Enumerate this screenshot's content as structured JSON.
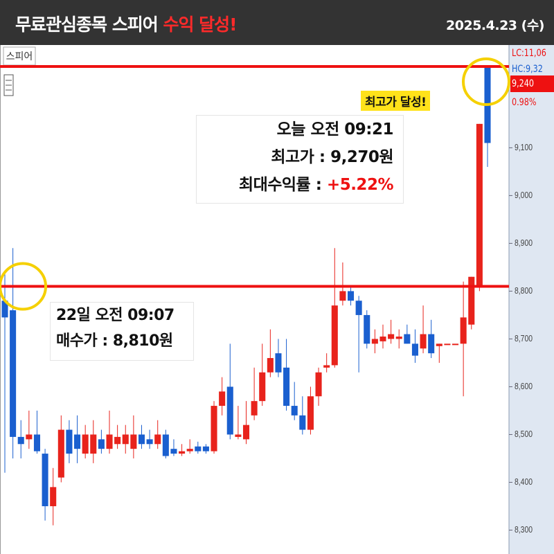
{
  "header": {
    "title": "무료관심종목 스피어",
    "title_highlight": "수익 달성!",
    "date": "2025.4.23 (수)"
  },
  "chart_data": {
    "type": "candlestick",
    "symbol_label": "스피어",
    "ylim": [
      8250,
      9315
    ],
    "yticks": [
      {
        "value": 8300,
        "label": "8,300"
      },
      {
        "value": 8400,
        "label": "8,400"
      },
      {
        "value": 8500,
        "label": "8,500"
      },
      {
        "value": 8600,
        "label": "8,600"
      },
      {
        "value": 8700,
        "label": "8,700"
      },
      {
        "value": 8800,
        "label": "8,800"
      },
      {
        "value": 8900,
        "label": "8,900"
      },
      {
        "value": 9000,
        "label": "9,000"
      },
      {
        "value": 9100,
        "label": "9,100"
      }
    ],
    "up_color": "#e8231c",
    "down_color": "#1a5fcf",
    "series": {
      "open": [
        8780,
        8760,
        8495,
        8490,
        8500,
        8460,
        8350,
        8410,
        8510,
        8500,
        8460,
        8460,
        8490,
        8470,
        8480,
        8480,
        8470,
        8500,
        8490,
        8480,
        8500,
        8470,
        8460,
        8465,
        8475,
        8475,
        8465,
        8560,
        8600,
        8495,
        8490,
        8540,
        8570,
        8630,
        8670,
        8640,
        8560,
        8540,
        8510,
        8580,
        8640,
        8645,
        8780,
        8800,
        8780,
        8750,
        8690,
        8695,
        8700,
        8700,
        8710,
        8690,
        8680,
        8710,
        8685,
        8690,
        8690,
        8690,
        8730,
        8810,
        9270
      ],
      "high": [
        8835,
        8890,
        8530,
        8550,
        8550,
        8470,
        8430,
        8540,
        8530,
        8540,
        8520,
        8530,
        8510,
        8550,
        8520,
        8520,
        8540,
        8520,
        8510,
        8530,
        8510,
        8490,
        8480,
        8490,
        8485,
        8480,
        8570,
        8620,
        8690,
        8560,
        8570,
        8640,
        8690,
        8720,
        8700,
        8700,
        8610,
        8580,
        8600,
        8640,
        8670,
        8890,
        8860,
        8810,
        8790,
        8760,
        8720,
        8730,
        8740,
        8720,
        8730,
        8720,
        8770,
        8740,
        8690,
        8690,
        8690,
        8820,
        8830,
        9150,
        9270
      ],
      "low": [
        8420,
        8450,
        8450,
        8470,
        8460,
        8320,
        8310,
        8400,
        8440,
        8440,
        8450,
        8440,
        8460,
        8460,
        8470,
        8460,
        8450,
        8470,
        8470,
        8470,
        8450,
        8455,
        8455,
        8460,
        8460,
        8460,
        8460,
        8540,
        8490,
        8490,
        8480,
        8530,
        8560,
        8620,
        8620,
        8550,
        8530,
        8500,
        8500,
        8560,
        8630,
        8640,
        8770,
        8770,
        8630,
        8680,
        8670,
        8680,
        8690,
        8680,
        8690,
        8650,
        8670,
        8660,
        8650,
        8690,
        8690,
        8580,
        8720,
        8800,
        9060
      ],
      "close": [
        8745,
        8495,
        8480,
        8500,
        8465,
        8350,
        8390,
        8510,
        8460,
        8470,
        8500,
        8500,
        8470,
        8500,
        8495,
        8500,
        8500,
        8480,
        8480,
        8500,
        8455,
        8460,
        8465,
        8470,
        8465,
        8465,
        8560,
        8590,
        8500,
        8500,
        8520,
        8570,
        8630,
        8660,
        8630,
        8560,
        8540,
        8510,
        8580,
        8630,
        8645,
        8770,
        8800,
        8780,
        8750,
        8690,
        8700,
        8705,
        8710,
        8705,
        8690,
        8665,
        8710,
        8670,
        8690,
        8690,
        8690,
        8745,
        8830,
        9150,
        9110
      ]
    },
    "reference_lines": [
      {
        "value": 8810,
        "color": "#ee1111"
      },
      {
        "value": 9270,
        "color": "#ee1111"
      }
    ],
    "axis_tags": [
      {
        "text": "LC:11,06",
        "color": "#ee1111"
      },
      {
        "text": "HC:9,32",
        "color": "#1a5fcf"
      },
      {
        "text": "9,240",
        "color": "#ee1111"
      },
      {
        "text": "0.98%",
        "color": "#ee1111"
      }
    ],
    "annotations": {
      "peak_badge": "최고가 달성!",
      "today_time": "오늘 오전 09:21",
      "peak_price": "최고가 : 9,270원",
      "max_return_label": "최대수익률 : ",
      "max_return": "+5.22%",
      "buy_time": "22일 오전 09:07",
      "buy_price": "매수가 : 8,810원"
    }
  }
}
